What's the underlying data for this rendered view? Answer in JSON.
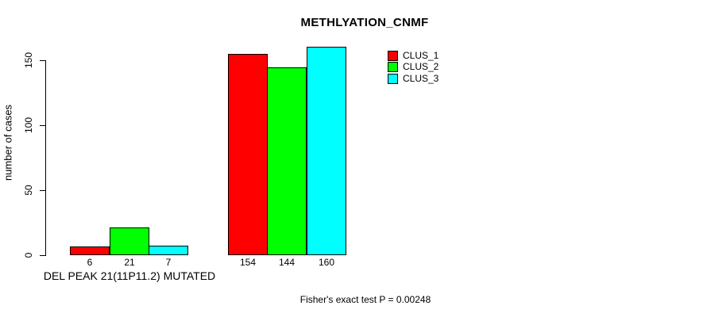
{
  "chart_data": {
    "type": "bar",
    "title": "METHLYATION_CNMF",
    "ylabel": "number of cases",
    "xlabel": "DEL PEAK 21(11P11.2) MUTATED",
    "annotation": "Fisher's exact test P = 0.00248",
    "categories": [
      "DEL PEAK 21(11P11.2) MUTATED",
      ""
    ],
    "series": [
      {
        "name": "CLUS_1",
        "color": "#ff0000",
        "values": [
          6,
          154
        ]
      },
      {
        "name": "CLUS_2",
        "color": "#00ff00",
        "values": [
          21,
          144
        ]
      },
      {
        "name": "CLUS_3",
        "color": "#00ffff",
        "values": [
          7,
          160
        ]
      }
    ],
    "bar_value_labels": [
      [
        "6",
        "21",
        "7"
      ],
      [
        "154",
        "144",
        "160"
      ]
    ],
    "yticks": [
      0,
      50,
      100,
      150
    ],
    "ylim": [
      0,
      163
    ],
    "grid": false,
    "legend": {
      "position": "top-right",
      "entries": [
        "CLUS_1",
        "CLUS_2",
        "CLUS_3"
      ]
    },
    "colors": {
      "background": "#ffffff",
      "text": "#000000",
      "bar_border": "#000000",
      "axis": "#000000"
    }
  }
}
